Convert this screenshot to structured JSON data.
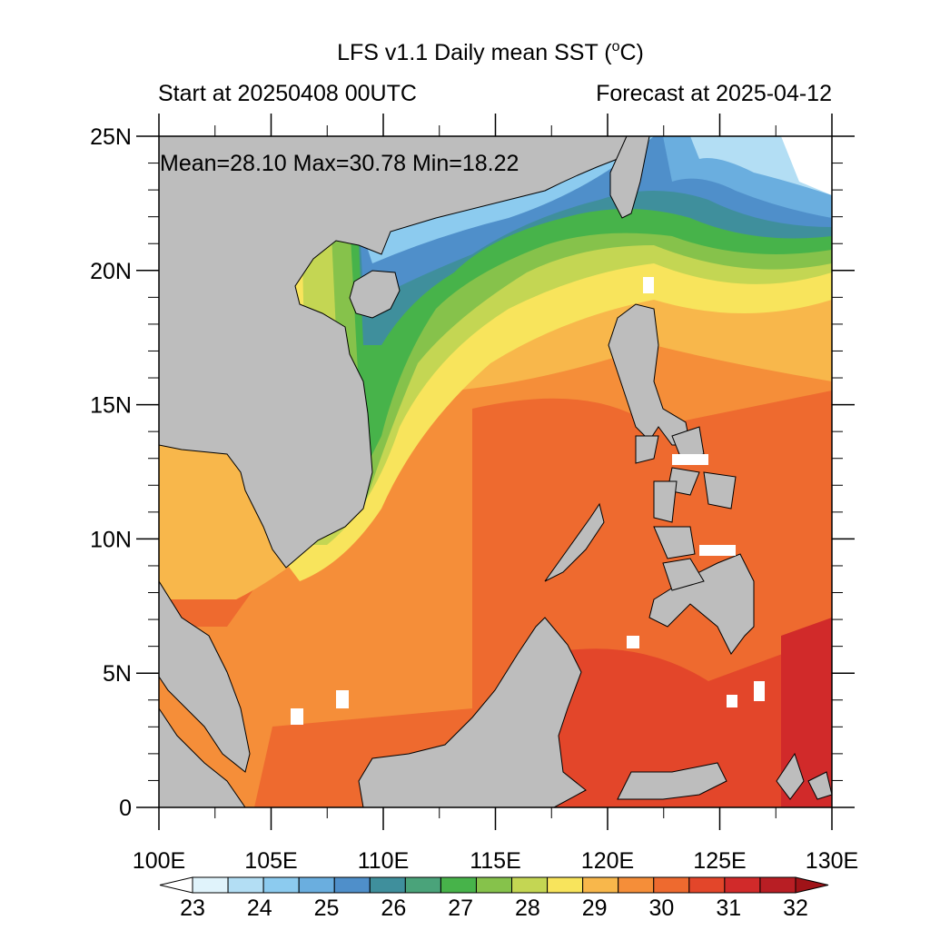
{
  "header": {
    "title": "LFS v1.1 Daily mean SST (",
    "title_sup": "o",
    "title_unit": "C)",
    "start_label": "Start at 20250408 00UTC",
    "forecast_label": "Forecast at 2025-04-12"
  },
  "stats": {
    "text": "Mean=28.10  Max=30.78  Min=18.22"
  },
  "map_data": {
    "region": "South China Sea and Philippines",
    "lon_range": [
      100,
      130
    ],
    "lat_range": [
      0,
      25
    ],
    "lat_ticks": [
      "25N",
      "20N",
      "15N",
      "10N",
      "5N",
      "0"
    ],
    "lon_ticks": [
      "100E",
      "105E",
      "110E",
      "115E",
      "120E",
      "125E",
      "130E"
    ],
    "land_color": "#bdbdbd",
    "missing_color": "#ffffff"
  },
  "colorbar": {
    "labels": [
      "23",
      "24",
      "25",
      "26",
      "27",
      "28",
      "29",
      "30",
      "31",
      "32"
    ],
    "colors": [
      "#ffffff",
      "#e0f3fb",
      "#b3def4",
      "#8ccbef",
      "#6aaedf",
      "#4f8fca",
      "#3f8f9c",
      "#4aa37a",
      "#47b34a",
      "#86c24b",
      "#c4d653",
      "#f8e45c",
      "#f8b74b",
      "#f58e39",
      "#ee6a2f",
      "#e3462a",
      "#d12a2a",
      "#b81e24",
      "#a01318"
    ]
  }
}
